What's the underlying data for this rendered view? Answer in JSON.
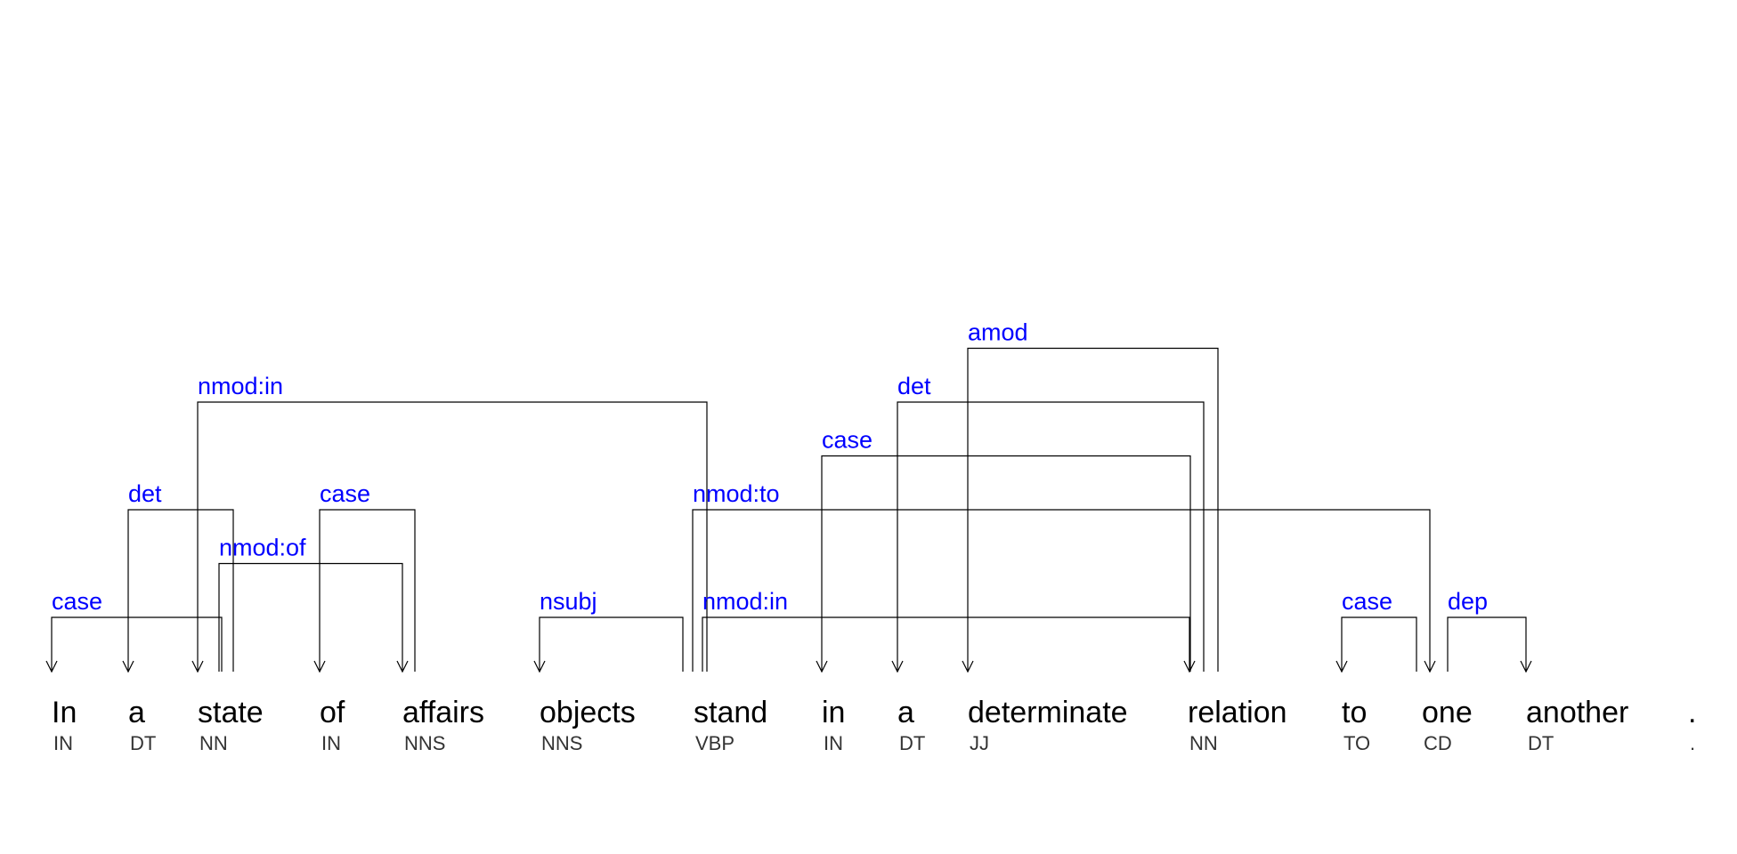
{
  "colors": {
    "label": "#0000ff",
    "token": "#000000",
    "tag": "#333333",
    "line": "#000000",
    "background": "#ffffff"
  },
  "tokens": [
    {
      "word": "In",
      "tag": "IN"
    },
    {
      "word": "a",
      "tag": "DT"
    },
    {
      "word": "state",
      "tag": "NN"
    },
    {
      "word": "of",
      "tag": "IN"
    },
    {
      "word": "affairs",
      "tag": "NNS"
    },
    {
      "word": "objects",
      "tag": "NNS"
    },
    {
      "word": "stand",
      "tag": "VBP"
    },
    {
      "word": "in",
      "tag": "IN"
    },
    {
      "word": "a",
      "tag": "DT"
    },
    {
      "word": "determinate",
      "tag": "JJ"
    },
    {
      "word": "relation",
      "tag": "NN"
    },
    {
      "word": "to",
      "tag": "TO"
    },
    {
      "word": "one",
      "tag": "CD"
    },
    {
      "word": "another",
      "tag": "DT"
    },
    {
      "word": ".",
      "tag": "."
    }
  ],
  "arcs": [
    {
      "label": "case",
      "head": 2,
      "dep": 0
    },
    {
      "label": "det",
      "head": 2,
      "dep": 1
    },
    {
      "label": "nmod:in",
      "head": 6,
      "dep": 2
    },
    {
      "label": "nmod:of",
      "head": 2,
      "dep": 4
    },
    {
      "label": "case",
      "head": 4,
      "dep": 3
    },
    {
      "label": "nsubj",
      "head": 6,
      "dep": 5
    },
    {
      "label": "nmod:in",
      "head": 6,
      "dep": 10
    },
    {
      "label": "nmod:to",
      "head": 6,
      "dep": 12
    },
    {
      "label": "case",
      "head": 10,
      "dep": 7
    },
    {
      "label": "det",
      "head": 10,
      "dep": 8
    },
    {
      "label": "amod",
      "head": 10,
      "dep": 9
    },
    {
      "label": "case",
      "head": 12,
      "dep": 11
    },
    {
      "label": "dep",
      "head": 12,
      "dep": 13
    }
  ]
}
